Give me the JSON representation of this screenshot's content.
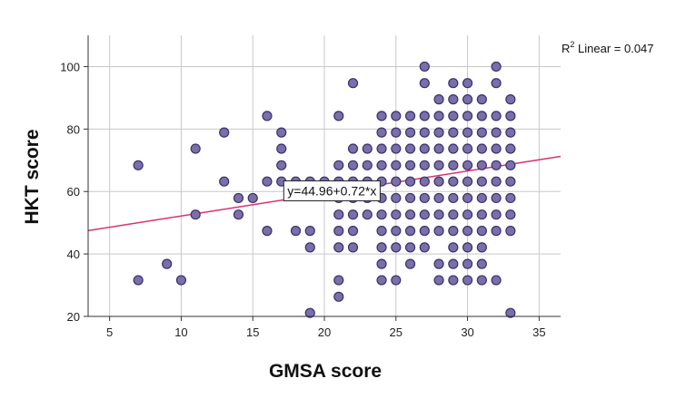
{
  "chart_data": {
    "type": "scatter",
    "xlabel": "GMSA score",
    "ylabel": "HKT score",
    "xlim": [
      3.5,
      36.5
    ],
    "ylim": [
      20,
      110
    ],
    "xticks": [
      "5",
      "10",
      "15",
      "20",
      "25",
      "30",
      "35"
    ],
    "yticks": [
      "20",
      "40",
      "60",
      "80",
      "100"
    ],
    "grid": true,
    "r2_prefix": "R",
    "r2_sup": "2",
    "r2_suffix": " Linear = 0.047",
    "fit": {
      "intercept": 44.96,
      "slope": 0.72,
      "label": "y=44.96+0.72*x"
    },
    "colors": {
      "point_fill": "#7b6fa8",
      "point_edge": "#3b2f70",
      "fit_line": "#d6336c",
      "grid": "#c8c8c8"
    },
    "points": [
      {
        "x": 7,
        "y": 68.4
      },
      {
        "x": 7,
        "y": 31.6
      },
      {
        "x": 9,
        "y": 36.8
      },
      {
        "x": 10,
        "y": 31.6
      },
      {
        "x": 11,
        "y": 73.7
      },
      {
        "x": 11,
        "y": 52.6
      },
      {
        "x": 13,
        "y": 78.9
      },
      {
        "x": 13,
        "y": 63.2
      },
      {
        "x": 14,
        "y": 57.9
      },
      {
        "x": 14,
        "y": 52.6
      },
      {
        "x": 15,
        "y": 57.9
      },
      {
        "x": 16,
        "y": 84.2
      },
      {
        "x": 16,
        "y": 63.2
      },
      {
        "x": 16,
        "y": 47.4
      },
      {
        "x": 17,
        "y": 78.9
      },
      {
        "x": 17,
        "y": 73.7
      },
      {
        "x": 17,
        "y": 68.4
      },
      {
        "x": 17,
        "y": 63.2
      },
      {
        "x": 18,
        "y": 47.4
      },
      {
        "x": 18,
        "y": 63.2
      },
      {
        "x": 19,
        "y": 63.2
      },
      {
        "x": 19,
        "y": 47.4
      },
      {
        "x": 19,
        "y": 42.1
      },
      {
        "x": 19,
        "y": 21.1
      },
      {
        "x": 20,
        "y": 63.2
      },
      {
        "x": 21,
        "y": 84.2
      },
      {
        "x": 21,
        "y": 68.4
      },
      {
        "x": 21,
        "y": 63.2
      },
      {
        "x": 21,
        "y": 57.9
      },
      {
        "x": 21,
        "y": 52.6
      },
      {
        "x": 21,
        "y": 47.4
      },
      {
        "x": 21,
        "y": 42.1
      },
      {
        "x": 21,
        "y": 31.6
      },
      {
        "x": 21,
        "y": 26.3
      },
      {
        "x": 22,
        "y": 94.7
      },
      {
        "x": 22,
        "y": 73.7
      },
      {
        "x": 22,
        "y": 68.4
      },
      {
        "x": 22,
        "y": 63.2
      },
      {
        "x": 22,
        "y": 57.9
      },
      {
        "x": 22,
        "y": 52.6
      },
      {
        "x": 22,
        "y": 47.4
      },
      {
        "x": 22,
        "y": 42.1
      },
      {
        "x": 23,
        "y": 73.7
      },
      {
        "x": 23,
        "y": 68.4
      },
      {
        "x": 23,
        "y": 63.2
      },
      {
        "x": 23,
        "y": 57.9
      },
      {
        "x": 23,
        "y": 52.6
      },
      {
        "x": 24,
        "y": 84.2
      },
      {
        "x": 24,
        "y": 78.9
      },
      {
        "x": 24,
        "y": 73.7
      },
      {
        "x": 24,
        "y": 68.4
      },
      {
        "x": 24,
        "y": 63.2
      },
      {
        "x": 24,
        "y": 57.9
      },
      {
        "x": 24,
        "y": 52.6
      },
      {
        "x": 24,
        "y": 47.4
      },
      {
        "x": 24,
        "y": 42.1
      },
      {
        "x": 24,
        "y": 36.8
      },
      {
        "x": 24,
        "y": 31.6
      },
      {
        "x": 25,
        "y": 84.2
      },
      {
        "x": 25,
        "y": 78.9
      },
      {
        "x": 25,
        "y": 73.7
      },
      {
        "x": 25,
        "y": 68.4
      },
      {
        "x": 25,
        "y": 63.2
      },
      {
        "x": 25,
        "y": 57.9
      },
      {
        "x": 25,
        "y": 52.6
      },
      {
        "x": 25,
        "y": 47.4
      },
      {
        "x": 25,
        "y": 42.1
      },
      {
        "x": 25,
        "y": 31.6
      },
      {
        "x": 26,
        "y": 84.2
      },
      {
        "x": 26,
        "y": 78.9
      },
      {
        "x": 26,
        "y": 73.7
      },
      {
        "x": 26,
        "y": 68.4
      },
      {
        "x": 26,
        "y": 63.2
      },
      {
        "x": 26,
        "y": 57.9
      },
      {
        "x": 26,
        "y": 52.6
      },
      {
        "x": 26,
        "y": 47.4
      },
      {
        "x": 26,
        "y": 42.1
      },
      {
        "x": 26,
        "y": 36.8
      },
      {
        "x": 27,
        "y": 100
      },
      {
        "x": 27,
        "y": 94.7
      },
      {
        "x": 27,
        "y": 84.2
      },
      {
        "x": 27,
        "y": 78.9
      },
      {
        "x": 27,
        "y": 73.7
      },
      {
        "x": 27,
        "y": 68.4
      },
      {
        "x": 27,
        "y": 63.2
      },
      {
        "x": 27,
        "y": 57.9
      },
      {
        "x": 27,
        "y": 52.6
      },
      {
        "x": 27,
        "y": 47.4
      },
      {
        "x": 27,
        "y": 42.1
      },
      {
        "x": 28,
        "y": 89.5
      },
      {
        "x": 28,
        "y": 84.2
      },
      {
        "x": 28,
        "y": 78.9
      },
      {
        "x": 28,
        "y": 73.7
      },
      {
        "x": 28,
        "y": 68.4
      },
      {
        "x": 28,
        "y": 63.2
      },
      {
        "x": 28,
        "y": 57.9
      },
      {
        "x": 28,
        "y": 52.6
      },
      {
        "x": 28,
        "y": 47.4
      },
      {
        "x": 28,
        "y": 36.8
      },
      {
        "x": 28,
        "y": 31.6
      },
      {
        "x": 29,
        "y": 94.7
      },
      {
        "x": 29,
        "y": 89.5
      },
      {
        "x": 29,
        "y": 84.2
      },
      {
        "x": 29,
        "y": 78.9
      },
      {
        "x": 29,
        "y": 73.7
      },
      {
        "x": 29,
        "y": 68.4
      },
      {
        "x": 29,
        "y": 63.2
      },
      {
        "x": 29,
        "y": 57.9
      },
      {
        "x": 29,
        "y": 52.6
      },
      {
        "x": 29,
        "y": 47.4
      },
      {
        "x": 29,
        "y": 42.1
      },
      {
        "x": 29,
        "y": 36.8
      },
      {
        "x": 29,
        "y": 31.6
      },
      {
        "x": 30,
        "y": 94.7
      },
      {
        "x": 30,
        "y": 89.5
      },
      {
        "x": 30,
        "y": 84.2
      },
      {
        "x": 30,
        "y": 78.9
      },
      {
        "x": 30,
        "y": 73.7
      },
      {
        "x": 30,
        "y": 68.4
      },
      {
        "x": 30,
        "y": 63.2
      },
      {
        "x": 30,
        "y": 57.9
      },
      {
        "x": 30,
        "y": 52.6
      },
      {
        "x": 30,
        "y": 47.4
      },
      {
        "x": 30,
        "y": 42.1
      },
      {
        "x": 30,
        "y": 36.8
      },
      {
        "x": 30,
        "y": 31.6
      },
      {
        "x": 31,
        "y": 89.5
      },
      {
        "x": 31,
        "y": 84.2
      },
      {
        "x": 31,
        "y": 78.9
      },
      {
        "x": 31,
        "y": 73.7
      },
      {
        "x": 31,
        "y": 68.4
      },
      {
        "x": 31,
        "y": 63.2
      },
      {
        "x": 31,
        "y": 57.9
      },
      {
        "x": 31,
        "y": 52.6
      },
      {
        "x": 31,
        "y": 47.4
      },
      {
        "x": 31,
        "y": 42.1
      },
      {
        "x": 31,
        "y": 36.8
      },
      {
        "x": 31,
        "y": 31.6
      },
      {
        "x": 32,
        "y": 100
      },
      {
        "x": 32,
        "y": 94.7
      },
      {
        "x": 32,
        "y": 84.2
      },
      {
        "x": 32,
        "y": 78.9
      },
      {
        "x": 32,
        "y": 73.7
      },
      {
        "x": 32,
        "y": 68.4
      },
      {
        "x": 32,
        "y": 63.2
      },
      {
        "x": 32,
        "y": 57.9
      },
      {
        "x": 32,
        "y": 52.6
      },
      {
        "x": 32,
        "y": 47.4
      },
      {
        "x": 32,
        "y": 31.6
      },
      {
        "x": 33,
        "y": 89.5
      },
      {
        "x": 33,
        "y": 84.2
      },
      {
        "x": 33,
        "y": 78.9
      },
      {
        "x": 33,
        "y": 73.7
      },
      {
        "x": 33,
        "y": 68.4
      },
      {
        "x": 33,
        "y": 63.2
      },
      {
        "x": 33,
        "y": 57.9
      },
      {
        "x": 33,
        "y": 52.6
      },
      {
        "x": 33,
        "y": 47.4
      },
      {
        "x": 33,
        "y": 21.1
      }
    ]
  }
}
